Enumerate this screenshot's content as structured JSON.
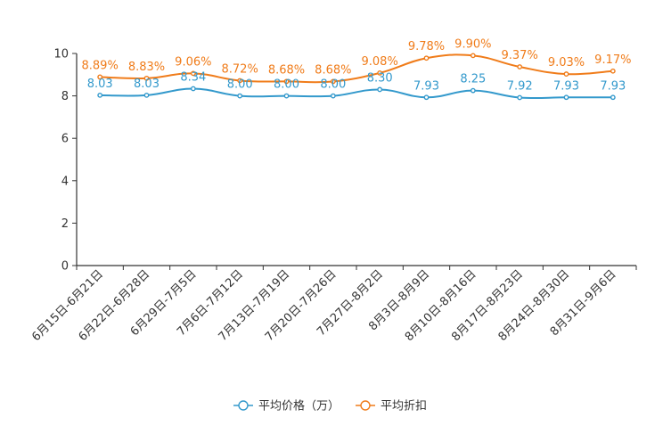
{
  "chart_data": {
    "type": "line",
    "title": "",
    "xlabel": "",
    "ylabel": "",
    "ylim": [
      0,
      10
    ],
    "yticks": [
      0,
      2,
      4,
      6,
      8,
      10
    ],
    "categories": [
      "6月15日-6月21日",
      "6月22日-6月28日",
      "6月29日-7月5日",
      "7月6日-7月12日",
      "7月13日-7月19日",
      "7月20日-7月26日",
      "7月27日-8月2日",
      "8月3日-8月9日",
      "8月10日-8月16日",
      "8月17日-8月23日",
      "8月24日-8月30日",
      "8月31日-9月6日"
    ],
    "series": [
      {
        "name": "平均价格（万）",
        "color": "#3399cc",
        "values": [
          8.03,
          8.03,
          8.34,
          8.0,
          8.0,
          8.0,
          8.3,
          7.93,
          8.25,
          7.92,
          7.93,
          7.93
        ],
        "labels": [
          "8.03",
          "8.03",
          "8.34",
          "8.00",
          "8.00",
          "8.00",
          "8.30",
          "7.93",
          "8.25",
          "7.92",
          "7.93",
          "7.93"
        ]
      },
      {
        "name": "平均折扣",
        "color": "#f07c1a",
        "values": [
          8.89,
          8.83,
          9.06,
          8.72,
          8.68,
          8.68,
          9.08,
          9.78,
          9.9,
          9.37,
          9.03,
          9.17
        ],
        "labels": [
          "8.89%",
          "8.83%",
          "9.06%",
          "8.72%",
          "8.68%",
          "8.68%",
          "9.08%",
          "9.78%",
          "9.90%",
          "9.37%",
          "9.03%",
          "9.17%"
        ]
      }
    ],
    "legend": "bottom-center"
  }
}
